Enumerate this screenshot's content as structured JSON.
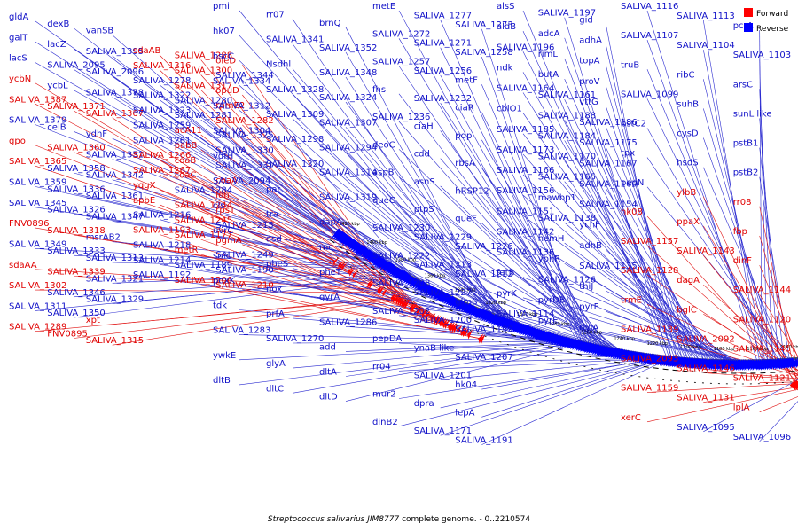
{
  "diagram": {
    "caption_italic": "Streptococcus salivarius JIM8777",
    "caption_rest": " complete genome. - 0..2210574",
    "legend": [
      {
        "label": "Forward",
        "color": "#ff0000"
      },
      {
        "label": "Reverse",
        "color": "#0000ff"
      }
    ],
    "ticks": [
      "1420 kbp",
      "1400 kbp",
      "1380 kbp",
      "1360 kbp",
      "1340 kbp",
      "1320 kbp",
      "1300 kbp",
      "1280 kbp",
      "1260 kbp",
      "1240 kbp",
      "1220 kbp",
      "1200 kbp",
      "1180 kbp",
      "1160 kbp",
      "1140 kbp",
      "1120 kbp"
    ],
    "labels": [
      {
        "t": "gldA",
        "s": "r"
      },
      {
        "t": "dexB",
        "s": "r"
      },
      {
        "t": "vanSB",
        "s": "r"
      },
      {
        "t": "galT",
        "s": "r"
      },
      {
        "t": "lacZ",
        "s": "r"
      },
      {
        "t": "SALIVA_1395",
        "s": "r"
      },
      {
        "t": "lacS",
        "s": "r"
      },
      {
        "t": "SALIVA_2095",
        "s": "r"
      },
      {
        "t": "SALIVA_2096",
        "s": "r"
      },
      {
        "t": "ycbN",
        "s": "f"
      },
      {
        "t": "ycbL",
        "s": "r"
      },
      {
        "t": "SALIVA_1378",
        "s": "r"
      },
      {
        "t": "SALIVA_1387",
        "s": "f"
      },
      {
        "t": "SALIVA_1371",
        "s": "f"
      },
      {
        "t": "SALIVA_1367",
        "s": "f"
      },
      {
        "t": "SALIVA_1379",
        "s": "r"
      },
      {
        "t": "celB",
        "s": "r"
      },
      {
        "t": "ydhF",
        "s": "r"
      },
      {
        "t": "gpo",
        "s": "f"
      },
      {
        "t": "SALIVA_1360",
        "s": "f"
      },
      {
        "t": "SALIVA_1351",
        "s": "r"
      },
      {
        "t": "SALIVA_1365",
        "s": "f"
      },
      {
        "t": "SALIVA_1358",
        "s": "r"
      },
      {
        "t": "SALIVA_1342",
        "s": "r"
      },
      {
        "t": "SALIVA_1359",
        "s": "r"
      },
      {
        "t": "SALIVA_1336",
        "s": "r"
      },
      {
        "t": "SALIVA_1361",
        "s": "r"
      },
      {
        "t": "SALIVA_1345",
        "s": "r"
      },
      {
        "t": "SALIVA_1326",
        "s": "r"
      },
      {
        "t": "SALIVA_1347",
        "s": "r"
      },
      {
        "t": "FNV0896",
        "s": "f"
      },
      {
        "t": "SALIVA_1318",
        "s": "f"
      },
      {
        "t": "msrAB2",
        "s": "r"
      },
      {
        "t": "SALIVA_1349",
        "s": "r"
      },
      {
        "t": "SALIVA_1333",
        "s": "r"
      },
      {
        "t": "SALIVA_1313",
        "s": "r"
      },
      {
        "t": "sdaAA",
        "s": "f"
      },
      {
        "t": "SALIVA_1339",
        "s": "f"
      },
      {
        "t": "SALIVA_1321",
        "s": "r"
      },
      {
        "t": "SALIVA_1302",
        "s": "f"
      },
      {
        "t": "SALIVA_1346",
        "s": "r"
      },
      {
        "t": "SALIVA_1329",
        "s": "r"
      },
      {
        "t": "SALIVA_1311",
        "s": "r"
      },
      {
        "t": "SALIVA_1350",
        "s": "r"
      },
      {
        "t": "xpt",
        "s": "f"
      },
      {
        "t": "SALIVA_1289",
        "s": "f"
      },
      {
        "t": "FNV0895",
        "s": "f"
      },
      {
        "t": "SALIVA_1315",
        "s": "f"
      },
      {
        "t": "sdaAB",
        "s": "f"
      },
      {
        "t": "SALIVA_1288",
        "s": "f"
      },
      {
        "t": "oleD",
        "s": "f"
      },
      {
        "t": "SALIVA_1316",
        "s": "f"
      },
      {
        "t": "SALIVA_1300",
        "s": "f"
      },
      {
        "t": "SALIVA_1344",
        "s": "r"
      },
      {
        "t": "SALIVA_1278",
        "s": "r"
      },
      {
        "t": "SALIVA_1317",
        "s": "f"
      },
      {
        "t": "opuD",
        "s": "f"
      },
      {
        "t": "SALIVA_1322",
        "s": "r"
      },
      {
        "t": "SALIVA_1280",
        "s": "r"
      },
      {
        "t": "rpmE2",
        "s": "f"
      },
      {
        "t": "SALIVA_1323",
        "s": "r"
      },
      {
        "t": "SALIVA_1281",
        "s": "r"
      },
      {
        "t": "SALIVA_1282",
        "s": "f"
      },
      {
        "t": "SALIVA_1259",
        "s": "r"
      },
      {
        "t": "acA11",
        "s": "f"
      },
      {
        "t": "SALIVA_1325",
        "s": "r"
      },
      {
        "t": "SALIVA_1261",
        "s": "r"
      },
      {
        "t": "pabB",
        "s": "f"
      },
      {
        "t": "SALIVA_1330",
        "s": "r"
      },
      {
        "t": "SALIVA_1266",
        "s": "f"
      },
      {
        "t": "coaB",
        "s": "f"
      },
      {
        "t": "SALIVA_1331",
        "s": "r"
      },
      {
        "t": "SALIVA_1267",
        "s": "f"
      },
      {
        "t": "coaC",
        "s": "f"
      },
      {
        "t": "coaA",
        "s": "f"
      },
      {
        "t": "yqgX",
        "s": "f"
      },
      {
        "t": "SALIVA_1284",
        "s": "r"
      },
      {
        "t": "ldh",
        "s": "f"
      },
      {
        "t": "apbE",
        "s": "f"
      },
      {
        "t": "SALIVA_1244",
        "s": "f"
      },
      {
        "t": "rpsT",
        "s": "f"
      },
      {
        "t": "SALIVA_1216",
        "s": "r"
      },
      {
        "t": "SALIVA_1245",
        "s": "f"
      },
      {
        "t": "SALIVA_1215",
        "s": "r"
      },
      {
        "t": "SALIVA_1193",
        "s": "f"
      },
      {
        "t": "SALIVA_1177",
        "s": "f"
      },
      {
        "t": "pgmA",
        "s": "f"
      },
      {
        "t": "SALIVA_1218",
        "s": "r"
      },
      {
        "t": "metR",
        "s": "f"
      },
      {
        "t": "SALIVA_1249",
        "s": "r"
      },
      {
        "t": "SALIVA_1214",
        "s": "r"
      },
      {
        "t": "SALIVA_1189",
        "s": "r"
      },
      {
        "t": "SALIVA_1190",
        "s": "r"
      },
      {
        "t": "SALIVA_1192",
        "s": "r"
      },
      {
        "t": "SALIVA_1206",
        "s": "f"
      },
      {
        "t": "SALIVA_1210",
        "s": "f"
      },
      {
        "t": "pmi",
        "s": "r"
      },
      {
        "t": "rr07",
        "s": "r"
      },
      {
        "t": "brnQ",
        "s": "r"
      },
      {
        "t": "hk07",
        "s": "r"
      },
      {
        "t": "SALIVA_1341",
        "s": "r"
      },
      {
        "t": "SALIVA_1352",
        "s": "r"
      },
      {
        "t": "hscC",
        "s": "r"
      },
      {
        "t": "Nsdhl",
        "s": "r"
      },
      {
        "t": "SALIVA_1348",
        "s": "r"
      },
      {
        "t": "SALIVA_1334",
        "s": "r"
      },
      {
        "t": "SALIVA_1328",
        "s": "r"
      },
      {
        "t": "SALIVA_1324",
        "s": "r"
      },
      {
        "t": "SALIVA_1312",
        "s": "r"
      },
      {
        "t": "SALIVA_1309",
        "s": "r"
      },
      {
        "t": "SALIVA_1307",
        "s": "r"
      },
      {
        "t": "SALIVA_1304",
        "s": "r"
      },
      {
        "t": "SALIVA_1298",
        "s": "r"
      },
      {
        "t": "SALIVA_1294",
        "s": "r"
      },
      {
        "t": "vdfH",
        "s": "r"
      },
      {
        "t": "SALIVA_1320",
        "s": "r"
      },
      {
        "t": "SALIVA_1314",
        "s": "r"
      },
      {
        "t": "SALIVA_2094",
        "s": "r"
      },
      {
        "t": "pat",
        "s": "r"
      },
      {
        "t": "SALIVA_1319",
        "s": "r"
      },
      {
        "t": "cls",
        "s": "r"
      },
      {
        "t": "tra",
        "s": "r"
      },
      {
        "t": "dapA",
        "s": "r"
      },
      {
        "t": "uvrC",
        "s": "r"
      },
      {
        "t": "asd",
        "s": "r"
      },
      {
        "t": "rnc",
        "s": "r"
      },
      {
        "t": "smc",
        "s": "r"
      },
      {
        "t": "pheS",
        "s": "r"
      },
      {
        "t": "pheT",
        "s": "r"
      },
      {
        "t": "pdxK",
        "s": "r"
      },
      {
        "t": "nox",
        "s": "r"
      },
      {
        "t": "gyrA",
        "s": "r"
      },
      {
        "t": "tdk",
        "s": "r"
      },
      {
        "t": "prfA",
        "s": "r"
      },
      {
        "t": "SALIVA_1286",
        "s": "r"
      },
      {
        "t": "SALIVA_1283",
        "s": "r"
      },
      {
        "t": "SALIVA_1270",
        "s": "r"
      },
      {
        "t": "add",
        "s": "r"
      },
      {
        "t": "ywkE",
        "s": "r"
      },
      {
        "t": "glyA",
        "s": "r"
      },
      {
        "t": "dltA",
        "s": "r"
      },
      {
        "t": "dltB",
        "s": "r"
      },
      {
        "t": "dltC",
        "s": "r"
      },
      {
        "t": "dltD",
        "s": "r"
      },
      {
        "t": "metE",
        "s": "r"
      },
      {
        "t": "SALIVA_1277",
        "s": "r"
      },
      {
        "t": "SALIVA_1273",
        "s": "r"
      },
      {
        "t": "SALIVA_1272",
        "s": "r"
      },
      {
        "t": "SALIVA_1271",
        "s": "r"
      },
      {
        "t": "SALIVA_1258",
        "s": "r"
      },
      {
        "t": "SALIVA_1257",
        "s": "r"
      },
      {
        "t": "SALIVA_1256",
        "s": "r"
      },
      {
        "t": "metF",
        "s": "r"
      },
      {
        "t": "fhs",
        "s": "r"
      },
      {
        "t": "SALIVA_1232",
        "s": "r"
      },
      {
        "t": "ciaR",
        "s": "r"
      },
      {
        "t": "SALIVA_1236",
        "s": "r"
      },
      {
        "t": "ciaH",
        "s": "r"
      },
      {
        "t": "pdp",
        "s": "r"
      },
      {
        "t": "deoC",
        "s": "r"
      },
      {
        "t": "cdd",
        "s": "r"
      },
      {
        "t": "rbsA",
        "s": "r"
      },
      {
        "t": "aspB",
        "s": "r"
      },
      {
        "t": "asnS",
        "s": "r"
      },
      {
        "t": "hRSP12",
        "s": "r"
      },
      {
        "t": "queC",
        "s": "r"
      },
      {
        "t": "ptpS",
        "s": "r"
      },
      {
        "t": "queF",
        "s": "r"
      },
      {
        "t": "SALIVA_1230",
        "s": "r"
      },
      {
        "t": "SALIVA_1229",
        "s": "r"
      },
      {
        "t": "SALIVA_1226",
        "s": "r"
      },
      {
        "t": "SALIVA_1222",
        "s": "r"
      },
      {
        "t": "SALIVA_1213",
        "s": "r"
      },
      {
        "t": "SALIVA_1212",
        "s": "r"
      },
      {
        "t": "SALIVA_1208",
        "s": "r"
      },
      {
        "t": "SALIVA_1227",
        "s": "r"
      },
      {
        "t": "glmS",
        "s": "r"
      },
      {
        "t": "SALIVA_1202",
        "s": "r"
      },
      {
        "t": "SALIVA_1200",
        "s": "r"
      },
      {
        "t": "SALIVA_1199",
        "s": "r"
      },
      {
        "t": "pepDA",
        "s": "r"
      },
      {
        "t": "ynaB like",
        "s": "r"
      },
      {
        "t": "SALIVA_1207",
        "s": "r"
      },
      {
        "t": "rr04",
        "s": "r"
      },
      {
        "t": "SALIVA_1201",
        "s": "r"
      },
      {
        "t": "hk04",
        "s": "r"
      },
      {
        "t": "mur2",
        "s": "r"
      },
      {
        "t": "dpra",
        "s": "r"
      },
      {
        "t": "lepA",
        "s": "r"
      },
      {
        "t": "dinB2",
        "s": "r"
      },
      {
        "t": "SALIVA_1171",
        "s": "r"
      },
      {
        "t": "SALIVA_1191",
        "s": "r"
      },
      {
        "t": "alsS",
        "s": "r"
      },
      {
        "t": "SALIVA_1197",
        "s": "r"
      },
      {
        "t": "gid",
        "s": "r"
      },
      {
        "t": "aldB",
        "s": "r"
      },
      {
        "t": "adcA",
        "s": "r"
      },
      {
        "t": "adhA",
        "s": "r"
      },
      {
        "t": "SALIVA_1196",
        "s": "r"
      },
      {
        "t": "rimL",
        "s": "r"
      },
      {
        "t": "topA",
        "s": "r"
      },
      {
        "t": "ndk",
        "s": "r"
      },
      {
        "t": "butA",
        "s": "r"
      },
      {
        "t": "proV",
        "s": "r"
      },
      {
        "t": "SALIVA_1164",
        "s": "r"
      },
      {
        "t": "SALIVA_1161",
        "s": "r"
      },
      {
        "t": "vttG",
        "s": "r"
      },
      {
        "t": "cbiO1",
        "s": "r"
      },
      {
        "t": "SALIVA_1188",
        "s": "r"
      },
      {
        "t": "SALIVA_1186",
        "s": "r"
      },
      {
        "t": "SALIVA_1185",
        "s": "r"
      },
      {
        "t": "SALIVA_1184",
        "s": "r"
      },
      {
        "t": "SALIVA_1175",
        "s": "r"
      },
      {
        "t": "SALIVA_1173",
        "s": "r"
      },
      {
        "t": "SALIVA_1170",
        "s": "r"
      },
      {
        "t": "SALIVA_1167",
        "s": "r"
      },
      {
        "t": "SALIVA_1166",
        "s": "r"
      },
      {
        "t": "SALIVA_1165",
        "s": "r"
      },
      {
        "t": "SALIVA_1160",
        "s": "r"
      },
      {
        "t": "SALIVA_1156",
        "s": "r"
      },
      {
        "t": "mawbp1",
        "s": "r"
      },
      {
        "t": "SALIVA_1154",
        "s": "r"
      },
      {
        "t": "SALIVA_1151",
        "s": "r"
      },
      {
        "t": "SALIVA_1138",
        "s": "r"
      },
      {
        "t": "ychF",
        "s": "r"
      },
      {
        "t": "SALIVA_1142",
        "s": "r"
      },
      {
        "t": "hemH",
        "s": "r"
      },
      {
        "t": "adhB",
        "s": "r"
      },
      {
        "t": "SALIVA_1136",
        "s": "r"
      },
      {
        "t": "ybhR",
        "s": "r"
      },
      {
        "t": "SALIVA_1135",
        "s": "r"
      },
      {
        "t": "fatB",
        "s": "r"
      },
      {
        "t": "SALIVA_1126",
        "s": "r"
      },
      {
        "t": "thiJ",
        "s": "r"
      },
      {
        "t": "pyrK",
        "s": "r"
      },
      {
        "t": "pyrDB",
        "s": "r"
      },
      {
        "t": "pyrF",
        "s": "r"
      },
      {
        "t": "SALIVA_1114",
        "s": "r"
      },
      {
        "t": "pyrE",
        "s": "r"
      },
      {
        "t": "nylA",
        "s": "r"
      },
      {
        "t": "SALIVA_1116",
        "s": "r"
      },
      {
        "t": "SALIVA_1113",
        "s": "r"
      },
      {
        "t": "pcrA",
        "s": "r"
      },
      {
        "t": "SALIVA_1107",
        "s": "r"
      },
      {
        "t": "SALIVA_1104",
        "s": "r"
      },
      {
        "t": "SALIVA_1103",
        "s": "r"
      },
      {
        "t": "truB",
        "s": "r"
      },
      {
        "t": "ribC",
        "s": "r"
      },
      {
        "t": "arsC",
        "s": "r"
      },
      {
        "t": "SALIVA_1099",
        "s": "r"
      },
      {
        "t": "suhB",
        "s": "r"
      },
      {
        "t": "sunL like",
        "s": "r"
      },
      {
        "t": "pstC2",
        "s": "r"
      },
      {
        "t": "cysD",
        "s": "r"
      },
      {
        "t": "pstB1",
        "s": "r"
      },
      {
        "t": "tpx",
        "s": "r"
      },
      {
        "t": "hsdS",
        "s": "r"
      },
      {
        "t": "pstB2",
        "s": "r"
      },
      {
        "t": "pepN",
        "s": "r"
      },
      {
        "t": "ylbB",
        "s": "f"
      },
      {
        "t": "rr08",
        "s": "f"
      },
      {
        "t": "hk08",
        "s": "f"
      },
      {
        "t": "ppaX",
        "s": "f"
      },
      {
        "t": "fbp",
        "s": "f"
      },
      {
        "t": "SALIVA_1157",
        "s": "f"
      },
      {
        "t": "SALIVA_1143",
        "s": "f"
      },
      {
        "t": "dinF",
        "s": "f"
      },
      {
        "t": "SALIVA_1128",
        "s": "f"
      },
      {
        "t": "dagA",
        "s": "f"
      },
      {
        "t": "SALIVA_1144",
        "s": "f"
      },
      {
        "t": "trmE",
        "s": "f"
      },
      {
        "t": "bglC",
        "s": "f"
      },
      {
        "t": "SALIVA_1120",
        "s": "f"
      },
      {
        "t": "SALIVA_1139",
        "s": "f"
      },
      {
        "t": "SALIVA_2092",
        "s": "f"
      },
      {
        "t": "SALIVA_1145",
        "s": "f"
      },
      {
        "t": "SALIVA_2093",
        "s": "f"
      },
      {
        "t": "SALIVA_1146",
        "s": "f"
      },
      {
        "t": "SALIVA_1121",
        "s": "f"
      },
      {
        "t": "SALIVA_1159",
        "s": "f"
      },
      {
        "t": "SALIVA_1131",
        "s": "f"
      },
      {
        "t": "lplA",
        "s": "f"
      },
      {
        "t": "xerC",
        "s": "f"
      },
      {
        "t": "SALIVA_1095",
        "s": "r"
      },
      {
        "t": "SALIVA_1096",
        "s": "r"
      }
    ]
  }
}
